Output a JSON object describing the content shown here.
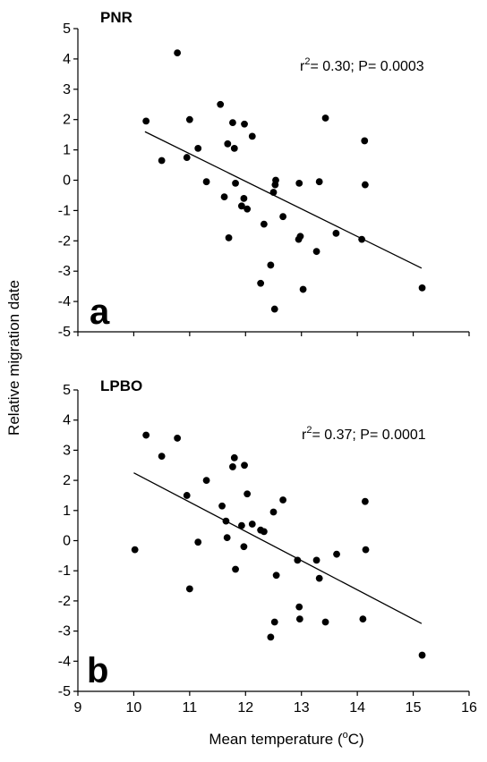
{
  "figure": {
    "ylabel": "Relative migration date",
    "xlabel": "Mean temperature",
    "xlabel_unit_open": " (",
    "xlabel_unit_sup": "o",
    "xlabel_unit_close": "C)"
  },
  "chart_data": [
    {
      "type": "scatter",
      "panel_letter": "a",
      "panel_name": "PNR",
      "stat_r": "r",
      "stat_sup": "2",
      "stat_rest": "= 0.30; P= 0.0003",
      "xlim": [
        9,
        16
      ],
      "ylim": [
        -5,
        5
      ],
      "xticks": [
        "9",
        "10",
        "11",
        "12",
        "13",
        "14",
        "15",
        "16"
      ],
      "yticks": [
        "5",
        "4",
        "3",
        "2",
        "1",
        "0",
        "-1",
        "-2",
        "-3",
        "-4",
        "-5"
      ],
      "show_x_tick_labels": false,
      "trendline": [
        [
          10.2,
          1.6
        ],
        [
          15.15,
          -2.9
        ]
      ],
      "points": [
        [
          10.22,
          1.95
        ],
        [
          10.5,
          0.65
        ],
        [
          10.78,
          4.2
        ],
        [
          10.95,
          0.75
        ],
        [
          11.0,
          2.0
        ],
        [
          11.15,
          1.05
        ],
        [
          11.3,
          -0.05
        ],
        [
          11.55,
          2.5
        ],
        [
          11.62,
          -0.55
        ],
        [
          11.68,
          1.2
        ],
        [
          11.7,
          -1.9
        ],
        [
          11.77,
          1.9
        ],
        [
          11.8,
          1.05
        ],
        [
          11.82,
          -0.1
        ],
        [
          11.93,
          -0.85
        ],
        [
          11.97,
          -0.6
        ],
        [
          11.98,
          1.85
        ],
        [
          12.03,
          -0.95
        ],
        [
          12.12,
          1.45
        ],
        [
          12.27,
          -3.4
        ],
        [
          12.33,
          -1.45
        ],
        [
          12.45,
          -2.8
        ],
        [
          12.5,
          -0.4
        ],
        [
          12.52,
          -4.25
        ],
        [
          12.53,
          -0.15
        ],
        [
          12.54,
          0.0
        ],
        [
          12.67,
          -1.2
        ],
        [
          12.95,
          -1.95
        ],
        [
          12.96,
          -0.1
        ],
        [
          12.98,
          -1.85
        ],
        [
          13.03,
          -3.6
        ],
        [
          13.27,
          -2.35
        ],
        [
          13.32,
          -0.05
        ],
        [
          13.43,
          2.05
        ],
        [
          13.62,
          -1.75
        ],
        [
          14.08,
          -1.95
        ],
        [
          14.13,
          1.3
        ],
        [
          14.14,
          -0.15
        ],
        [
          15.16,
          -3.55
        ]
      ]
    },
    {
      "type": "scatter",
      "panel_letter": "b",
      "panel_name": "LPBO",
      "stat_r": "r",
      "stat_sup": "2",
      "stat_rest": "= 0.37; P= 0.0001",
      "xlim": [
        9,
        16
      ],
      "ylim": [
        -5,
        5
      ],
      "xticks": [
        "9",
        "10",
        "11",
        "12",
        "13",
        "14",
        "15",
        "16"
      ],
      "yticks": [
        "5",
        "4",
        "3",
        "2",
        "1",
        "0",
        "-1",
        "-2",
        "-3",
        "-4",
        "-5"
      ],
      "show_x_tick_labels": true,
      "trendline": [
        [
          10.0,
          2.25
        ],
        [
          15.15,
          -2.75
        ]
      ],
      "points": [
        [
          10.02,
          -0.3
        ],
        [
          10.22,
          3.5
        ],
        [
          10.5,
          2.8
        ],
        [
          10.78,
          3.4
        ],
        [
          10.95,
          1.5
        ],
        [
          11.0,
          -1.6
        ],
        [
          11.15,
          -0.05
        ],
        [
          11.3,
          2.0
        ],
        [
          11.58,
          1.15
        ],
        [
          11.65,
          0.65
        ],
        [
          11.67,
          0.1
        ],
        [
          11.77,
          2.45
        ],
        [
          11.8,
          2.75
        ],
        [
          11.82,
          -0.95
        ],
        [
          11.93,
          0.5
        ],
        [
          11.97,
          -0.2
        ],
        [
          11.98,
          2.5
        ],
        [
          12.03,
          1.55
        ],
        [
          12.12,
          0.55
        ],
        [
          12.27,
          0.35
        ],
        [
          12.33,
          0.3
        ],
        [
          12.45,
          -3.2
        ],
        [
          12.5,
          0.95
        ],
        [
          12.52,
          -2.7
        ],
        [
          12.55,
          -1.15
        ],
        [
          12.67,
          1.35
        ],
        [
          12.93,
          -0.65
        ],
        [
          12.96,
          -2.2
        ],
        [
          12.97,
          -2.6
        ],
        [
          13.27,
          -0.65
        ],
        [
          13.32,
          -1.25
        ],
        [
          13.43,
          -2.7
        ],
        [
          13.63,
          -0.45
        ],
        [
          14.1,
          -2.6
        ],
        [
          14.14,
          1.3
        ],
        [
          14.15,
          -0.3
        ],
        [
          15.16,
          -3.8
        ]
      ]
    }
  ]
}
